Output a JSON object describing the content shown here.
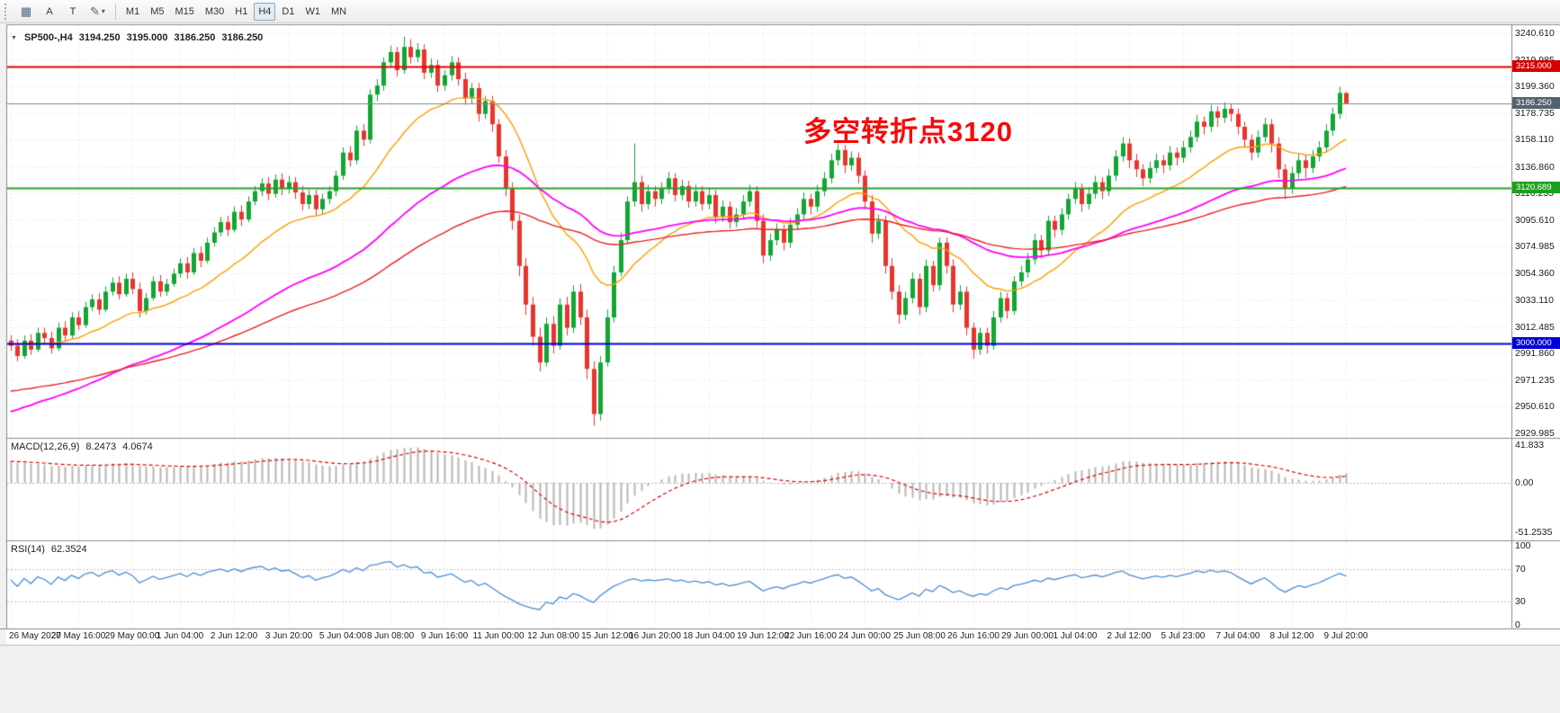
{
  "toolbar": {
    "buttons": [
      {
        "label": "A"
      },
      {
        "label": "T"
      }
    ],
    "timeframes": [
      "M1",
      "M5",
      "M15",
      "M30",
      "H1",
      "H4",
      "D1",
      "W1",
      "MN"
    ],
    "active_timeframe": "H4"
  },
  "chart_data": {
    "type": "candlestick",
    "symbol": "SP500-",
    "timeframe": "H4",
    "header": {
      "symbol_period": "SP500-,H4",
      "open": "3194.250",
      "high": "3195.000",
      "low": "3186.250",
      "close": "3186.250"
    },
    "annotation": {
      "text": "多空转折点3120",
      "color": "#f30b0b"
    },
    "up_color": "#12a633",
    "down_color": "#e8352e",
    "price_axis_range": [
      2926,
      3248
    ],
    "price_ticks": [
      3240.61,
      3219.985,
      3199.36,
      3178.735,
      3158.11,
      3136.86,
      3116.235,
      3095.61,
      3074.985,
      3054.36,
      3033.11,
      3012.485,
      2991.86,
      2971.235,
      2950.61,
      2929.985
    ],
    "hlines": [
      {
        "price": 3215.0,
        "label": "3215.000",
        "color": "#e60000",
        "tag_color": "#d40000",
        "width": 2
      },
      {
        "price": 3186.25,
        "label": "3186.250",
        "color": "#74899a",
        "tag_color": "#53626e",
        "width": 1
      },
      {
        "price": 3120.689,
        "label": "3120.689",
        "color": "#28a028",
        "tag_color": "#1da01d",
        "width": 2
      },
      {
        "price": 3000.0,
        "label": "3000.000",
        "color": "#0000e0",
        "tag_color": "#0000d6",
        "width": 2
      }
    ],
    "time_labels": [
      {
        "text": "26 May 2020",
        "bar": 0
      },
      {
        "text": "27 May 16:00",
        "bar": 10
      },
      {
        "text": "29 May 00:00",
        "bar": 18
      },
      {
        "text": "1 Jun 04:00",
        "bar": 25
      },
      {
        "text": "2 Jun 12:00",
        "bar": 33
      },
      {
        "text": "3 Jun 20:00",
        "bar": 41
      },
      {
        "text": "5 Jun 04:00",
        "bar": 49
      },
      {
        "text": "8 Jun 08:00",
        "bar": 56
      },
      {
        "text": "9 Jun 16:00",
        "bar": 64
      },
      {
        "text": "11 Jun 00:00",
        "bar": 72
      },
      {
        "text": "12 Jun 08:00",
        "bar": 80
      },
      {
        "text": "15 Jun 12:00",
        "bar": 88
      },
      {
        "text": "16 Jun 20:00",
        "bar": 95
      },
      {
        "text": "18 Jun 04:00",
        "bar": 103
      },
      {
        "text": "19 Jun 12:00",
        "bar": 111
      },
      {
        "text": "22 Jun 16:00",
        "bar": 118
      },
      {
        "text": "24 Jun 00:00",
        "bar": 126
      },
      {
        "text": "25 Jun 08:00",
        "bar": 134
      },
      {
        "text": "26 Jun 16:00",
        "bar": 142
      },
      {
        "text": "29 Jun 00:00",
        "bar": 150
      },
      {
        "text": "1 Jul 04:00",
        "bar": 157
      },
      {
        "text": "2 Jul 12:00",
        "bar": 165
      },
      {
        "text": "5 Jul 23:00",
        "bar": 173
      },
      {
        "text": "7 Jul 04:00",
        "bar": 181
      },
      {
        "text": "8 Jul 12:00",
        "bar": 189
      },
      {
        "text": "9 Jul 20:00",
        "bar": 197
      }
    ],
    "overlays": [
      {
        "name": "ma-fast",
        "color": "#ff9d00",
        "period": 20,
        "seed": 3000,
        "width": 1.4
      },
      {
        "name": "ma-mid",
        "color": "#ff00ff",
        "period": 55,
        "seed": 2945,
        "width": 1.8
      },
      {
        "name": "ma-slow",
        "color": "#e82020",
        "period": 90,
        "seed": 2962,
        "width": 1.4
      }
    ],
    "macd": {
      "title": "MACD(12,26,9)",
      "value": "8.2473",
      "signal": "4.0674",
      "histogram_color": "#b6b6b6",
      "signal_color": "#e00000",
      "signal_style": "dashed",
      "seed_fast": 2985,
      "seed_slow": 2962,
      "axis_labels": [
        {
          "text": "41.833",
          "v": 41.833
        },
        {
          "text": "0.00",
          "v": 0
        },
        {
          "text": "-51.2535",
          "v": -51.2535
        }
      ]
    },
    "rsi": {
      "title": "RSI(14)",
      "value": "62.3524",
      "color": "#4a8fd4",
      "levels": [
        70,
        30
      ],
      "axis_labels": [
        {
          "text": "100",
          "v": 100
        },
        {
          "text": "70",
          "v": 70
        },
        {
          "text": "30",
          "v": 30
        },
        {
          "text": "0",
          "v": 0
        }
      ]
    },
    "ohlc": [
      [
        3002,
        3006,
        2994,
        2998
      ],
      [
        2998,
        3003,
        2986,
        2990
      ],
      [
        2990,
        3006,
        2988,
        3002
      ],
      [
        3002,
        3007,
        2991,
        2995
      ],
      [
        2995,
        3012,
        2993,
        3008
      ],
      [
        3008,
        3012,
        3000,
        3004
      ],
      [
        3004,
        3009,
        2992,
        2996
      ],
      [
        2996,
        3016,
        2994,
        3012
      ],
      [
        3012,
        3017,
        3002,
        3006
      ],
      [
        3006,
        3024,
        3004,
        3020
      ],
      [
        3020,
        3025,
        3010,
        3014
      ],
      [
        3014,
        3032,
        3012,
        3028
      ],
      [
        3028,
        3038,
        3025,
        3034
      ],
      [
        3034,
        3039,
        3022,
        3026
      ],
      [
        3026,
        3044,
        3024,
        3040
      ],
      [
        3040,
        3051,
        3037,
        3047
      ],
      [
        3047,
        3052,
        3034,
        3038
      ],
      [
        3038,
        3054,
        3036,
        3050
      ],
      [
        3050,
        3055,
        3038,
        3042
      ],
      [
        3042,
        3047,
        3020,
        3025
      ],
      [
        3025,
        3039,
        3022,
        3035
      ],
      [
        3035,
        3052,
        3033,
        3048
      ],
      [
        3048,
        3053,
        3036,
        3040
      ],
      [
        3040,
        3050,
        3037,
        3046
      ],
      [
        3046,
        3058,
        3044,
        3054
      ],
      [
        3054,
        3066,
        3051,
        3062
      ],
      [
        3062,
        3067,
        3050,
        3055
      ],
      [
        3055,
        3074,
        3053,
        3070
      ],
      [
        3070,
        3075,
        3059,
        3064
      ],
      [
        3064,
        3082,
        3062,
        3078
      ],
      [
        3078,
        3090,
        3075,
        3086
      ],
      [
        3086,
        3098,
        3083,
        3094
      ],
      [
        3094,
        3099,
        3083,
        3088
      ],
      [
        3088,
        3106,
        3086,
        3102
      ],
      [
        3102,
        3107,
        3091,
        3096
      ],
      [
        3096,
        3114,
        3094,
        3110
      ],
      [
        3110,
        3122,
        3107,
        3118
      ],
      [
        3118,
        3128,
        3114,
        3124
      ],
      [
        3124,
        3129,
        3111,
        3116
      ],
      [
        3116,
        3131,
        3113,
        3127
      ],
      [
        3127,
        3132,
        3115,
        3120
      ],
      [
        3120,
        3130,
        3116,
        3125
      ],
      [
        3125,
        3129,
        3112,
        3117
      ],
      [
        3117,
        3122,
        3103,
        3108
      ],
      [
        3108,
        3119,
        3104,
        3115
      ],
      [
        3115,
        3119,
        3099,
        3104
      ],
      [
        3104,
        3116,
        3100,
        3112
      ],
      [
        3112,
        3122,
        3108,
        3118
      ],
      [
        3118,
        3134,
        3114,
        3130
      ],
      [
        3130,
        3152,
        3127,
        3148
      ],
      [
        3148,
        3153,
        3137,
        3142
      ],
      [
        3142,
        3169,
        3139,
        3165
      ],
      [
        3165,
        3170,
        3153,
        3158
      ],
      [
        3158,
        3197,
        3155,
        3193
      ],
      [
        3193,
        3205,
        3188,
        3200
      ],
      [
        3200,
        3222,
        3196,
        3218
      ],
      [
        3218,
        3231,
        3214,
        3226
      ],
      [
        3226,
        3230,
        3207,
        3212
      ],
      [
        3212,
        3238,
        3209,
        3230
      ],
      [
        3230,
        3236,
        3217,
        3222
      ],
      [
        3222,
        3233,
        3218,
        3228
      ],
      [
        3228,
        3232,
        3205,
        3210
      ],
      [
        3210,
        3221,
        3206,
        3216
      ],
      [
        3216,
        3220,
        3195,
        3200
      ],
      [
        3200,
        3212,
        3196,
        3208
      ],
      [
        3208,
        3223,
        3204,
        3218
      ],
      [
        3218,
        3222,
        3200,
        3205
      ],
      [
        3205,
        3210,
        3185,
        3190
      ],
      [
        3190,
        3202,
        3186,
        3198
      ],
      [
        3198,
        3202,
        3172,
        3178
      ],
      [
        3178,
        3192,
        3174,
        3188
      ],
      [
        3188,
        3192,
        3164,
        3170
      ],
      [
        3170,
        3174,
        3140,
        3145
      ],
      [
        3145,
        3150,
        3114,
        3120
      ],
      [
        3120,
        3125,
        3088,
        3095
      ],
      [
        3095,
        3100,
        3052,
        3060
      ],
      [
        3060,
        3066,
        3022,
        3030
      ],
      [
        3030,
        3036,
        2998,
        3005
      ],
      [
        3005,
        3012,
        2978,
        2985
      ],
      [
        2985,
        3020,
        2982,
        3015
      ],
      [
        3015,
        3021,
        2992,
        2998
      ],
      [
        2998,
        3035,
        2995,
        3030
      ],
      [
        3030,
        3036,
        3006,
        3012
      ],
      [
        3012,
        3045,
        3008,
        3040
      ],
      [
        3040,
        3046,
        3014,
        3020
      ],
      [
        3020,
        3026,
        2972,
        2980
      ],
      [
        2980,
        2986,
        2936,
        2945
      ],
      [
        2945,
        2990,
        2940,
        2985
      ],
      [
        2985,
        3026,
        2982,
        3020
      ],
      [
        3020,
        3060,
        3016,
        3055
      ],
      [
        3055,
        3086,
        3052,
        3080
      ],
      [
        3080,
        3114,
        3077,
        3110
      ],
      [
        3110,
        3155,
        3106,
        3125
      ],
      [
        3125,
        3130,
        3102,
        3108
      ],
      [
        3108,
        3123,
        3104,
        3118
      ],
      [
        3118,
        3122,
        3106,
        3112
      ],
      [
        3112,
        3125,
        3108,
        3120
      ],
      [
        3120,
        3133,
        3116,
        3128
      ],
      [
        3128,
        3132,
        3110,
        3115
      ],
      [
        3115,
        3127,
        3111,
        3122
      ],
      [
        3122,
        3126,
        3105,
        3110
      ],
      [
        3110,
        3123,
        3106,
        3118
      ],
      [
        3118,
        3122,
        3103,
        3108
      ],
      [
        3108,
        3120,
        3104,
        3115
      ],
      [
        3115,
        3119,
        3093,
        3098
      ],
      [
        3098,
        3111,
        3094,
        3106
      ],
      [
        3106,
        3110,
        3089,
        3094
      ],
      [
        3094,
        3105,
        3090,
        3100
      ],
      [
        3100,
        3115,
        3096,
        3110
      ],
      [
        3110,
        3123,
        3106,
        3118
      ],
      [
        3118,
        3122,
        3090,
        3095
      ],
      [
        3095,
        3100,
        3062,
        3068
      ],
      [
        3068,
        3085,
        3064,
        3080
      ],
      [
        3080,
        3093,
        3076,
        3088
      ],
      [
        3088,
        3092,
        3072,
        3078
      ],
      [
        3078,
        3097,
        3074,
        3092
      ],
      [
        3092,
        3105,
        3088,
        3100
      ],
      [
        3100,
        3117,
        3096,
        3112
      ],
      [
        3112,
        3116,
        3100,
        3106
      ],
      [
        3106,
        3123,
        3102,
        3118
      ],
      [
        3118,
        3133,
        3114,
        3128
      ],
      [
        3128,
        3147,
        3124,
        3142
      ],
      [
        3142,
        3155,
        3138,
        3150
      ],
      [
        3150,
        3154,
        3132,
        3138
      ],
      [
        3138,
        3149,
        3134,
        3144
      ],
      [
        3144,
        3148,
        3124,
        3130
      ],
      [
        3130,
        3134,
        3104,
        3110
      ],
      [
        3110,
        3115,
        3078,
        3085
      ],
      [
        3085,
        3100,
        3081,
        3095
      ],
      [
        3095,
        3099,
        3054,
        3060
      ],
      [
        3060,
        3066,
        3034,
        3040
      ],
      [
        3040,
        3045,
        3015,
        3022
      ],
      [
        3022,
        3040,
        3018,
        3035
      ],
      [
        3035,
        3055,
        3031,
        3050
      ],
      [
        3050,
        3054,
        3022,
        3028
      ],
      [
        3028,
        3065,
        3024,
        3060
      ],
      [
        3060,
        3064,
        3040,
        3045
      ],
      [
        3045,
        3082,
        3041,
        3078
      ],
      [
        3078,
        3082,
        3054,
        3060
      ],
      [
        3060,
        3065,
        3024,
        3030
      ],
      [
        3030,
        3045,
        3026,
        3040
      ],
      [
        3040,
        3044,
        3006,
        3012
      ],
      [
        3012,
        3016,
        2988,
        2995
      ],
      [
        2995,
        3012,
        2991,
        3008
      ],
      [
        3008,
        3012,
        2992,
        2998
      ],
      [
        2998,
        3025,
        2995,
        3020
      ],
      [
        3020,
        3040,
        3016,
        3035
      ],
      [
        3035,
        3039,
        3019,
        3025
      ],
      [
        3025,
        3052,
        3022,
        3048
      ],
      [
        3048,
        3060,
        3044,
        3055
      ],
      [
        3055,
        3070,
        3051,
        3065
      ],
      [
        3065,
        3085,
        3061,
        3080
      ],
      [
        3080,
        3084,
        3066,
        3072
      ],
      [
        3072,
        3099,
        3068,
        3095
      ],
      [
        3095,
        3099,
        3082,
        3088
      ],
      [
        3088,
        3105,
        3084,
        3100
      ],
      [
        3100,
        3116,
        3096,
        3112
      ],
      [
        3112,
        3125,
        3108,
        3120
      ],
      [
        3120,
        3124,
        3102,
        3108
      ],
      [
        3108,
        3121,
        3104,
        3116
      ],
      [
        3116,
        3130,
        3112,
        3125
      ],
      [
        3125,
        3129,
        3112,
        3118
      ],
      [
        3118,
        3135,
        3114,
        3130
      ],
      [
        3130,
        3150,
        3126,
        3145
      ],
      [
        3145,
        3160,
        3141,
        3155
      ],
      [
        3155,
        3159,
        3136,
        3142
      ],
      [
        3142,
        3147,
        3129,
        3135
      ],
      [
        3135,
        3139,
        3122,
        3128
      ],
      [
        3128,
        3141,
        3124,
        3136
      ],
      [
        3136,
        3147,
        3132,
        3142
      ],
      [
        3142,
        3146,
        3132,
        3138
      ],
      [
        3138,
        3153,
        3134,
        3148
      ],
      [
        3148,
        3152,
        3138,
        3144
      ],
      [
        3144,
        3157,
        3140,
        3152
      ],
      [
        3152,
        3165,
        3148,
        3160
      ],
      [
        3160,
        3177,
        3156,
        3172
      ],
      [
        3172,
        3176,
        3162,
        3168
      ],
      [
        3168,
        3185,
        3164,
        3180
      ],
      [
        3180,
        3184,
        3168,
        3175
      ],
      [
        3175,
        3187,
        3171,
        3182
      ],
      [
        3182,
        3186,
        3172,
        3178
      ],
      [
        3178,
        3182,
        3162,
        3168
      ],
      [
        3168,
        3172,
        3152,
        3158
      ],
      [
        3158,
        3162,
        3142,
        3148
      ],
      [
        3148,
        3165,
        3144,
        3160
      ],
      [
        3160,
        3175,
        3156,
        3170
      ],
      [
        3170,
        3174,
        3148,
        3155
      ],
      [
        3155,
        3160,
        3128,
        3135
      ],
      [
        3135,
        3139,
        3112,
        3120
      ],
      [
        3120,
        3137,
        3116,
        3132
      ],
      [
        3132,
        3147,
        3128,
        3142
      ],
      [
        3142,
        3146,
        3128,
        3136
      ],
      [
        3136,
        3150,
        3132,
        3145
      ],
      [
        3145,
        3157,
        3141,
        3152
      ],
      [
        3152,
        3170,
        3148,
        3165
      ],
      [
        3165,
        3183,
        3161,
        3178
      ],
      [
        3178,
        3199,
        3174,
        3194.25
      ],
      [
        3194.25,
        3195,
        3186.25,
        3186.25
      ]
    ]
  }
}
